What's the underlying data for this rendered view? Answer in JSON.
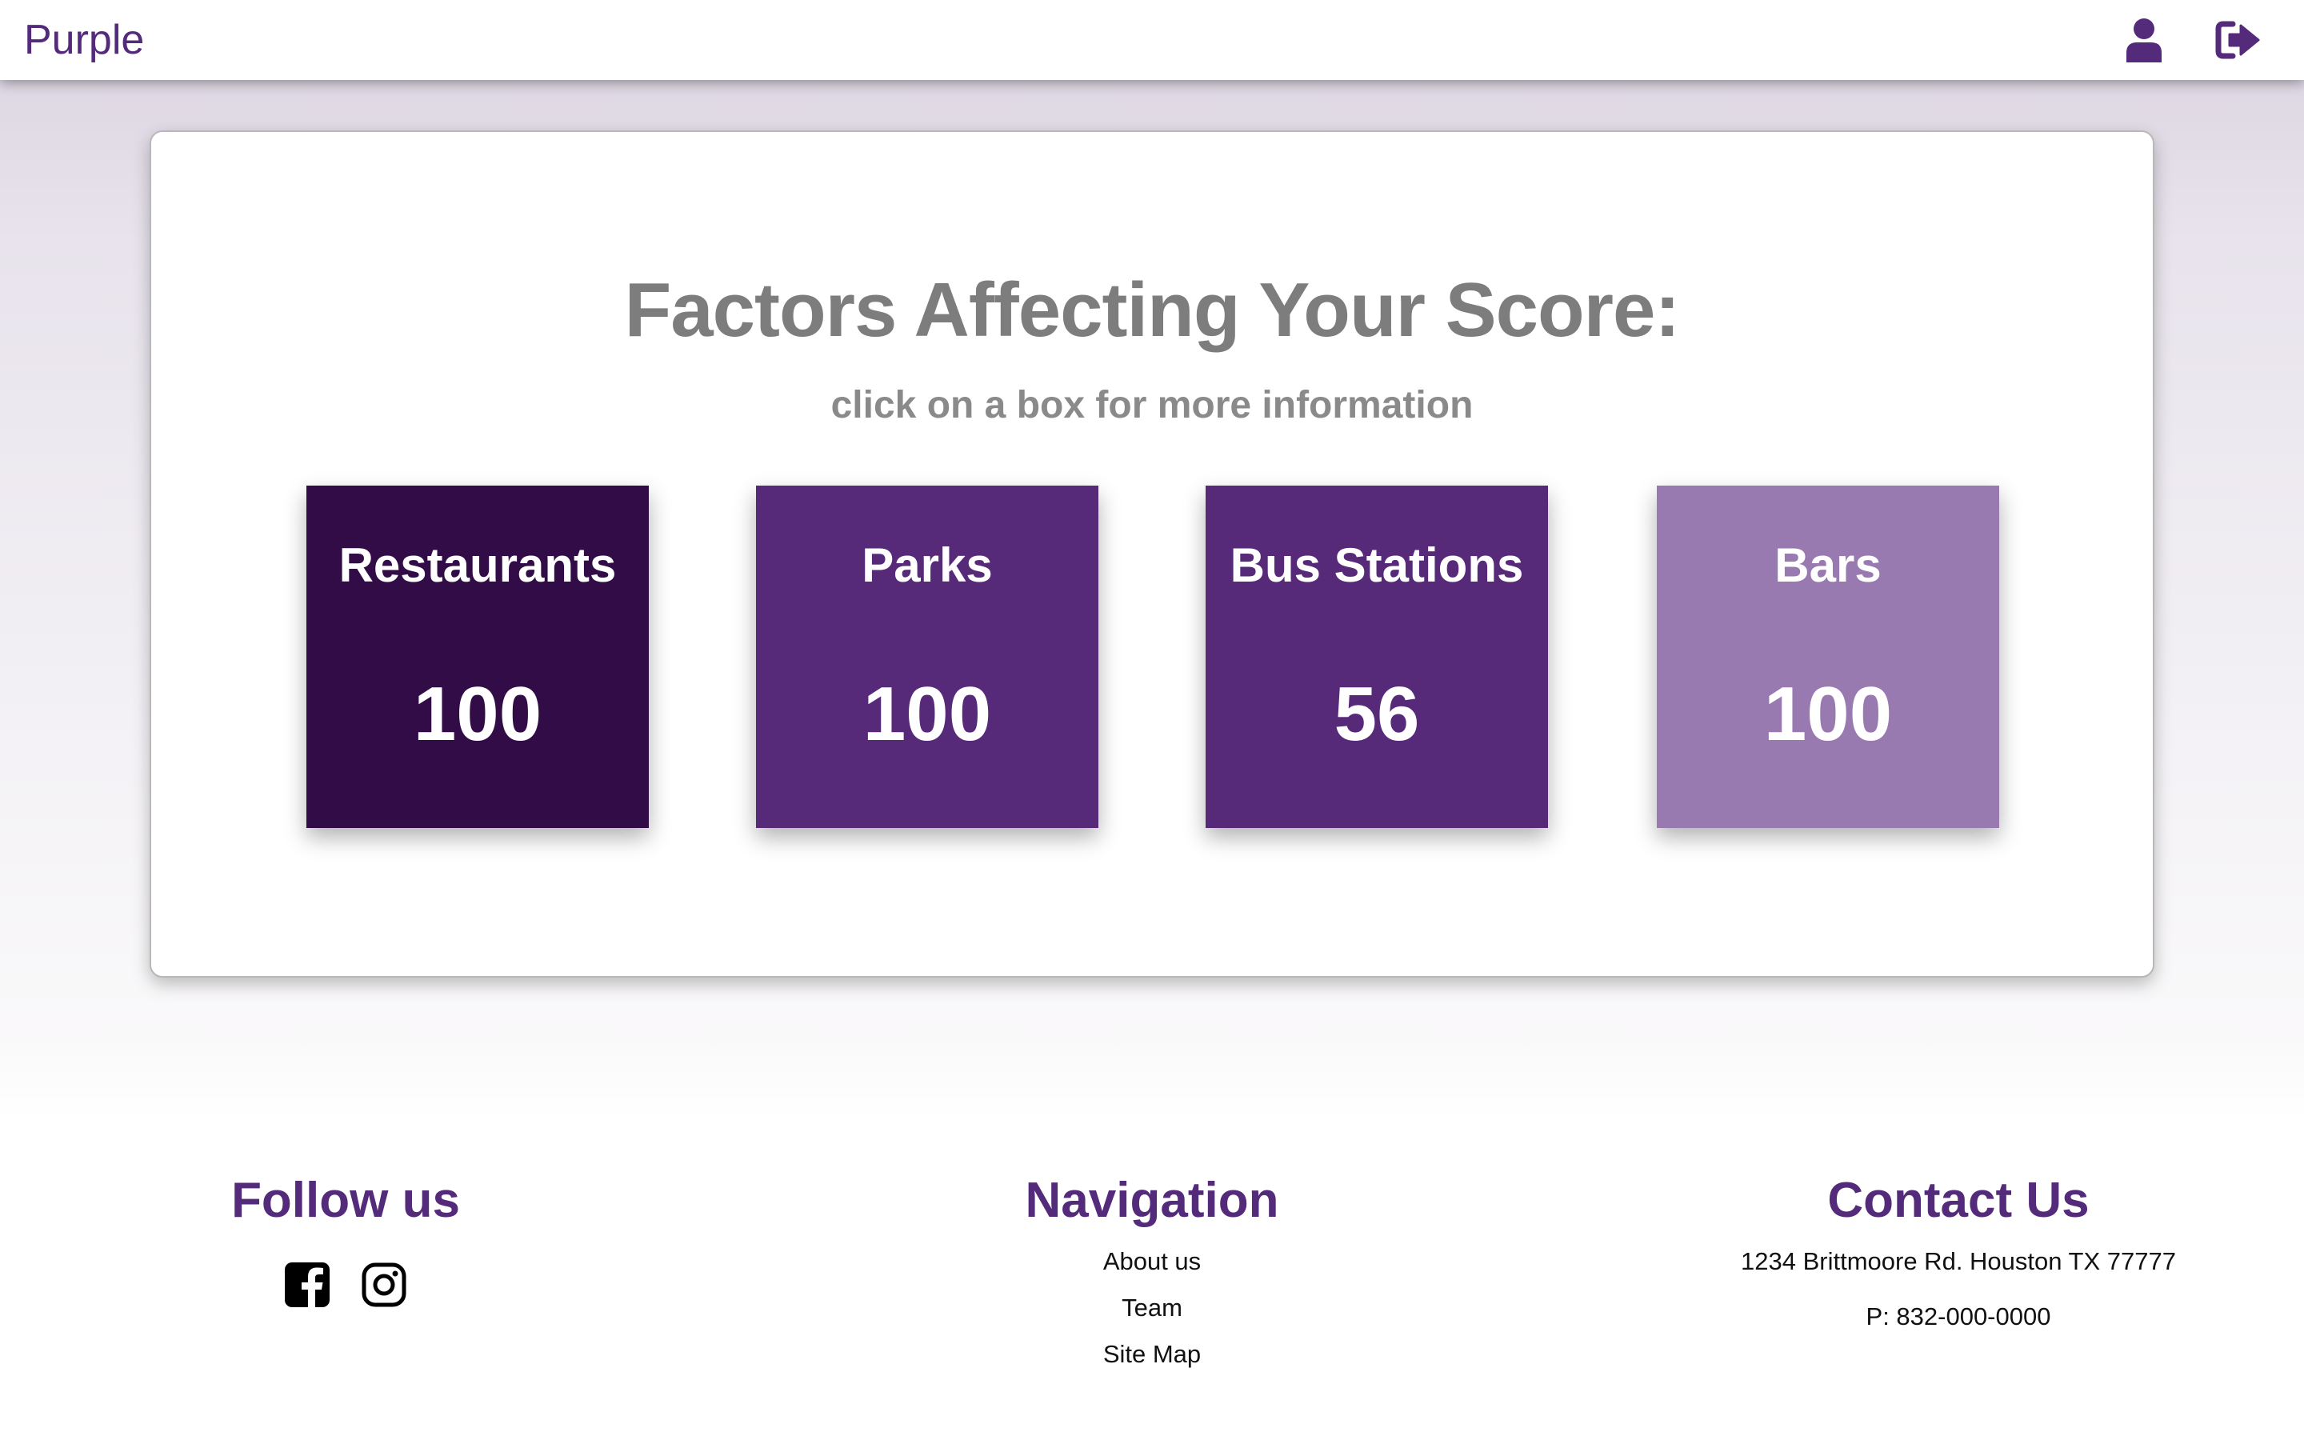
{
  "navbar": {
    "brand": "Purple",
    "icons": {
      "user": "user-icon",
      "logout": "sign-out-icon"
    }
  },
  "card": {
    "title": "Factors Affecting Your Score:",
    "subtitle": "click on a box for more information",
    "factors": [
      {
        "name": "Restaurants",
        "value": "100",
        "color": "#320c46"
      },
      {
        "name": "Parks",
        "value": "100",
        "color": "#562a79"
      },
      {
        "name": "Bus Stations",
        "value": "56",
        "color": "#562a79"
      },
      {
        "name": "Bars",
        "value": "100",
        "color": "#9879b0"
      }
    ]
  },
  "footer": {
    "follow": {
      "heading": "Follow us",
      "icons": [
        "facebook-icon",
        "instagram-icon"
      ]
    },
    "navigation": {
      "heading": "Navigation",
      "links": [
        "About us",
        "Team",
        "Site Map"
      ]
    },
    "contact": {
      "heading": "Contact Us",
      "address": "1234 Brittmoore Rd. Houston TX 77777",
      "phone": "P: 832-000-0000"
    }
  },
  "colors": {
    "brand": "#542a7a",
    "title_gray": "#7d7d7d"
  }
}
